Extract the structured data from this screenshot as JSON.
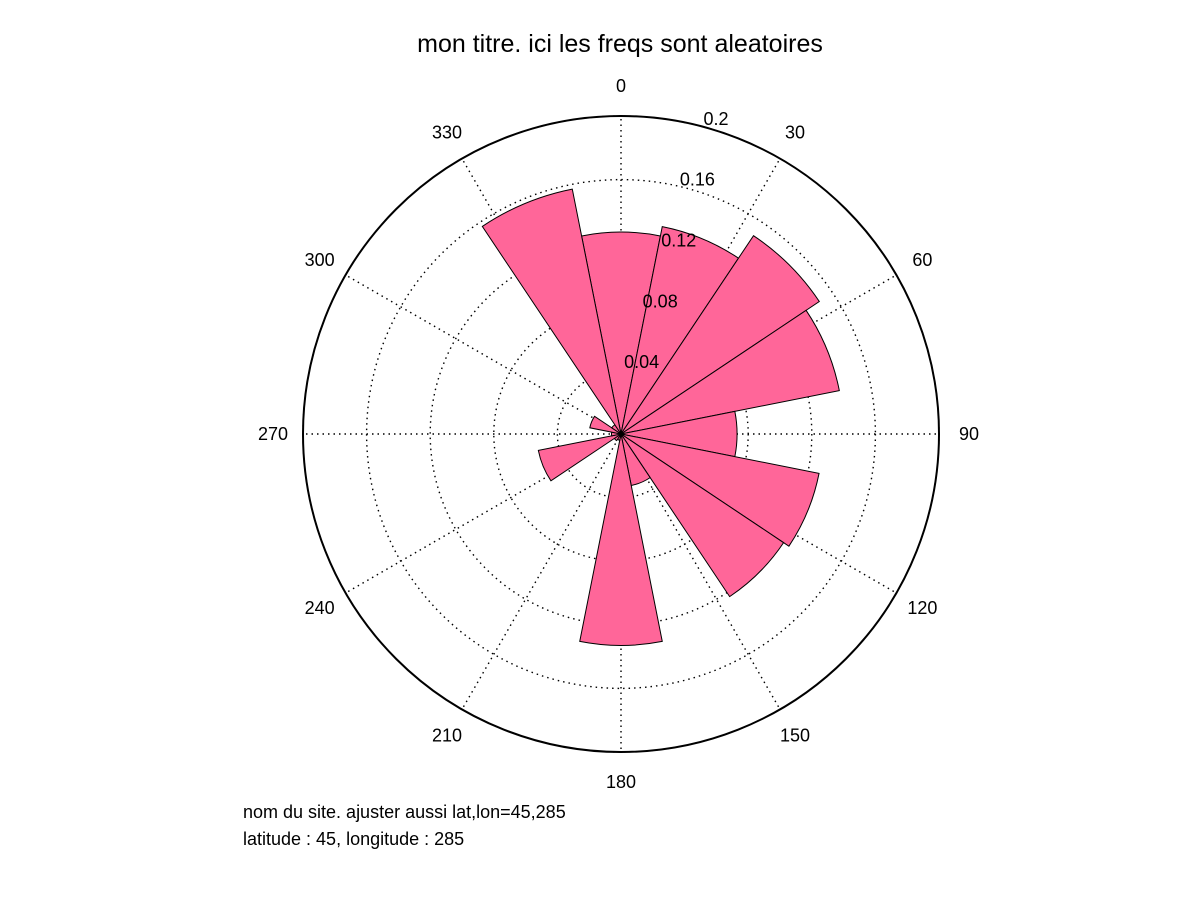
{
  "chart_data": {
    "type": "polar-bar",
    "title": "mon titre.  ici les freqs sont aleatoires",
    "angle_unit": "degrees",
    "direction": "clockwise",
    "zero_location": "top",
    "angle_ticks": [
      0,
      30,
      60,
      90,
      120,
      150,
      180,
      210,
      240,
      270,
      300,
      330
    ],
    "radial_ticks": [
      "0.04",
      "0.08",
      "0.12",
      "0.16",
      "0.2"
    ],
    "radial_tick_values": [
      0.04,
      0.08,
      0.12,
      0.16,
      0.2
    ],
    "rmax": 0.2,
    "bin_width_deg": 22.5,
    "bar_color": "#ff6699",
    "bars": [
      {
        "center": 0,
        "value": 0.127
      },
      {
        "center": 22.5,
        "value": 0.133
      },
      {
        "center": 45,
        "value": 0.15
      },
      {
        "center": 67.5,
        "value": 0.14
      },
      {
        "center": 90,
        "value": 0.073
      },
      {
        "center": 112.5,
        "value": 0.127
      },
      {
        "center": 135,
        "value": 0.123
      },
      {
        "center": 157.5,
        "value": 0.033
      },
      {
        "center": 180,
        "value": 0.133
      },
      {
        "center": 202.5,
        "value": 0.004
      },
      {
        "center": 225,
        "value": 0.005
      },
      {
        "center": 247.5,
        "value": 0.053
      },
      {
        "center": 270,
        "value": 0.006
      },
      {
        "center": 292.5,
        "value": 0.02
      },
      {
        "center": 315,
        "value": 0.007
      },
      {
        "center": 337.5,
        "value": 0.157
      }
    ]
  },
  "caption": {
    "line1": "nom du site. ajuster aussi lat,lon=45,285",
    "line2": "latitude : 45, longitude : 285"
  }
}
